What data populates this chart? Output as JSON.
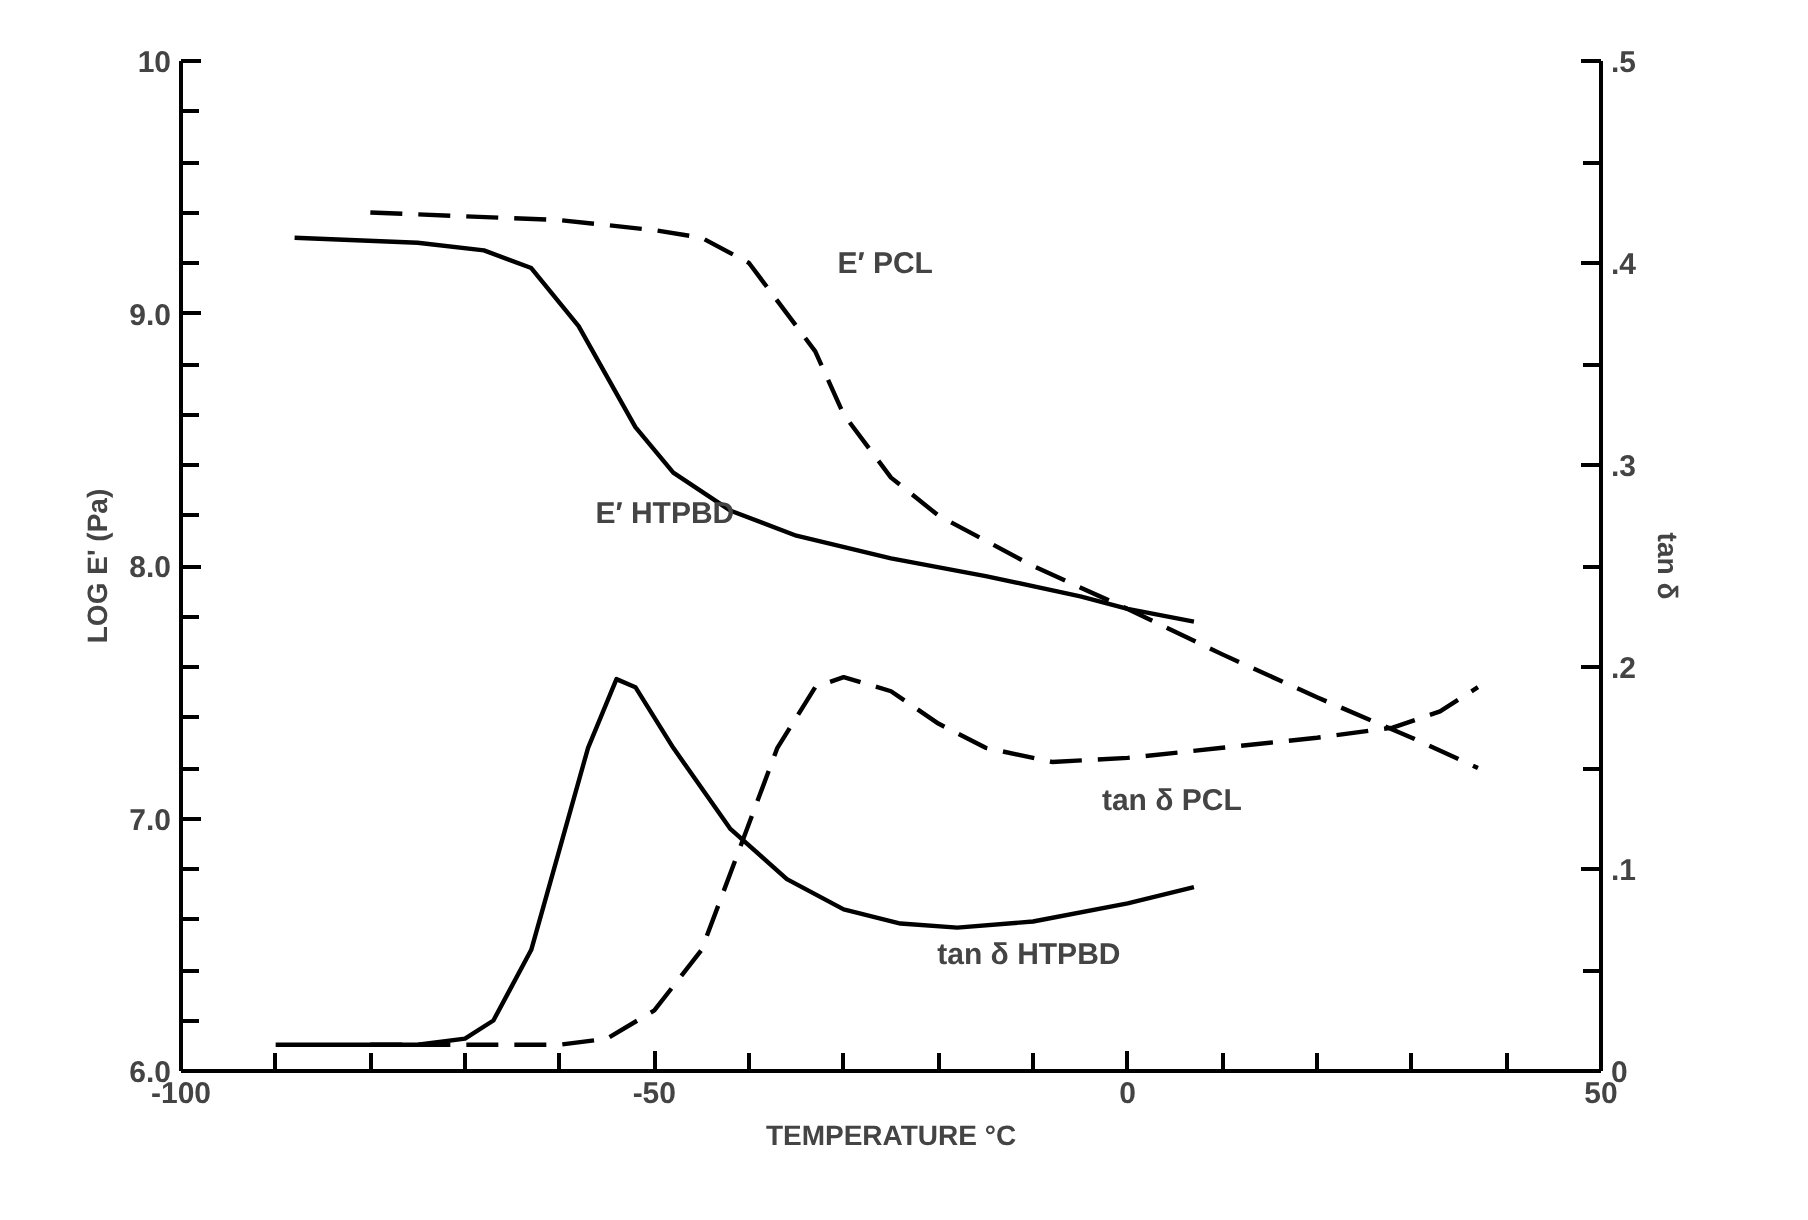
{
  "chart_data": {
    "type": "line",
    "xlabel": "TEMPERATURE °C",
    "ylabel": "LOG E' (Pa)",
    "y2label": "tan δ",
    "xlim": [
      -100,
      50
    ],
    "ylim": [
      6.0,
      10
    ],
    "y2lim": [
      0,
      0.5
    ],
    "xticks": [
      -100,
      {
        "value": -90,
        "label": null
      },
      {
        "value": -80,
        "label": null
      },
      {
        "value": -70,
        "label": null
      },
      {
        "value": -60,
        "label": null
      },
      -50,
      {
        "value": -40,
        "label": null
      },
      {
        "value": -30,
        "label": null
      },
      {
        "value": -20,
        "label": null
      },
      {
        "value": -10,
        "label": null
      },
      0,
      {
        "value": 10,
        "label": null
      },
      {
        "value": 20,
        "label": null
      },
      {
        "value": 30,
        "label": null
      },
      {
        "value": 40,
        "label": null
      },
      50
    ],
    "yticks": [
      {
        "value": 6.0,
        "label": "6.0"
      },
      {
        "value": 6.2,
        "label": null
      },
      {
        "value": 6.4,
        "label": null
      },
      {
        "value": 6.6,
        "label": null
      },
      {
        "value": 6.8,
        "label": null
      },
      {
        "value": 7.0,
        "label": "7.0"
      },
      {
        "value": 7.2,
        "label": null
      },
      {
        "value": 7.4,
        "label": null
      },
      {
        "value": 7.6,
        "label": null
      },
      {
        "value": 7.8,
        "label": null
      },
      {
        "value": 8.0,
        "label": "8.0"
      },
      {
        "value": 8.2,
        "label": null
      },
      {
        "value": 8.4,
        "label": null
      },
      {
        "value": 8.6,
        "label": null
      },
      {
        "value": 8.8,
        "label": null
      },
      {
        "value": 9.0,
        "label": "9.0"
      },
      {
        "value": 9.2,
        "label": null
      },
      {
        "value": 9.4,
        "label": null
      },
      {
        "value": 9.6,
        "label": null
      },
      {
        "value": 9.8,
        "label": null
      },
      10
    ],
    "y2ticks": [
      0,
      {
        "value": 0.05,
        "label": null
      },
      {
        "value": 0.1,
        "label": ".1"
      },
      {
        "value": 0.15,
        "label": null
      },
      {
        "value": 0.2,
        "label": ".2"
      },
      {
        "value": 0.25,
        "label": null
      },
      {
        "value": 0.3,
        "label": ".3"
      },
      {
        "value": 0.35,
        "label": null
      },
      {
        "value": 0.4,
        "label": ".4"
      },
      {
        "value": 0.45,
        "label": null
      },
      {
        "value": 0.5,
        "label": ".5"
      }
    ],
    "grid": false,
    "legend": false,
    "marker": "none",
    "series": [
      {
        "name": "E′ HTPBD",
        "color": "#000000",
        "line_style": "solid",
        "x": [
          -88,
          -75,
          -68,
          -63,
          -58,
          -55,
          -52,
          -48,
          -42,
          -35,
          -25,
          -15,
          -5,
          0,
          7
        ],
        "values": [
          9.3,
          9.28,
          9.25,
          9.18,
          8.95,
          8.75,
          8.55,
          8.37,
          8.22,
          8.12,
          8.03,
          7.96,
          7.88,
          7.83,
          7.78
        ]
      },
      {
        "name": "E′ PCL",
        "color": "#000000",
        "line_style": "dashed",
        "x": [
          -80,
          -60,
          -50,
          -45,
          -40,
          -37,
          -33,
          -30,
          -25,
          -20,
          -10,
          0,
          10,
          20,
          30,
          37
        ],
        "values": [
          9.4,
          9.37,
          9.33,
          9.3,
          9.2,
          9.05,
          8.85,
          8.6,
          8.35,
          8.2,
          8.0,
          7.83,
          7.65,
          7.48,
          7.32,
          7.2
        ]
      },
      {
        "name": "tan δ HTPBD",
        "color": "#000000",
        "line_style": "solid",
        "axis": "y2",
        "x": [
          -90,
          -75,
          -70,
          -67,
          -63,
          -60,
          -57,
          -54,
          -52,
          -48,
          -42,
          -36,
          -30,
          -24,
          -18,
          -10,
          0,
          7
        ],
        "values": [
          0.013,
          0.013,
          0.016,
          0.025,
          0.06,
          0.11,
          0.16,
          0.194,
          0.19,
          0.16,
          0.12,
          0.095,
          0.08,
          0.073,
          0.071,
          0.074,
          0.083,
          0.091
        ]
      },
      {
        "name": "tan δ PCL",
        "color": "#000000",
        "line_style": "dashed",
        "axis": "y2",
        "x": [
          -80,
          -60,
          -55,
          -50,
          -45,
          -41,
          -37,
          -33,
          -30,
          -25,
          -20,
          -15,
          -8,
          0,
          10,
          20,
          28,
          33,
          37
        ],
        "values": [
          0.013,
          0.013,
          0.016,
          0.03,
          0.06,
          0.11,
          0.16,
          0.19,
          0.195,
          0.188,
          0.172,
          0.16,
          0.153,
          0.155,
          0.16,
          0.165,
          0.17,
          0.178,
          0.19
        ]
      }
    ]
  }
}
